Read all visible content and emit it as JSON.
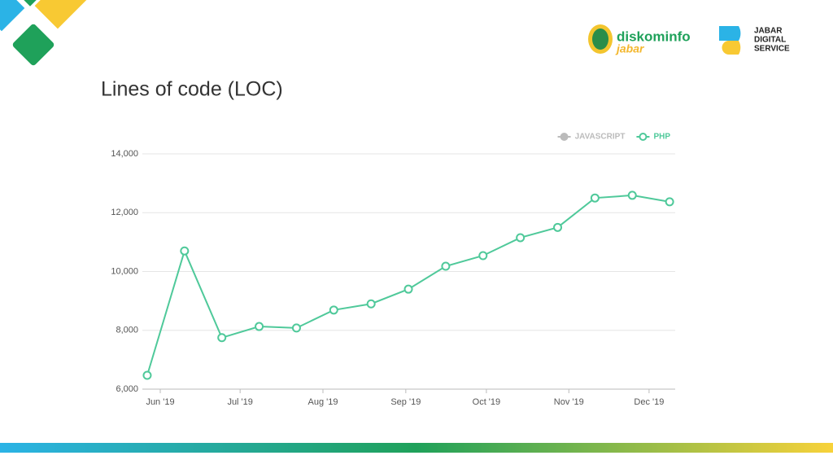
{
  "logos": {
    "diskominfo": "diskominfo",
    "jabar": "jabar",
    "jds": [
      "JABAR",
      "DIGITAL",
      "SERVICE"
    ]
  },
  "chart_data": {
    "type": "line",
    "title": "Lines of code (LOC)",
    "x": [
      0,
      1,
      2,
      3,
      4,
      5,
      6,
      7,
      8,
      9,
      10,
      11,
      12,
      13,
      14
    ],
    "series": [
      {
        "name": "JAVASCRIPT",
        "color": "#bbbbbb",
        "hidden": true,
        "values": [
          null,
          null,
          null,
          null,
          null,
          null,
          null,
          null,
          null,
          null,
          null,
          null,
          null,
          null,
          null
        ]
      },
      {
        "name": "PHP",
        "color": "#4fc99a",
        "values": [
          6470,
          10700,
          7750,
          8130,
          8080,
          8690,
          8900,
          9400,
          10180,
          10540,
          11150,
          11500,
          12500,
          12590,
          12370
        ]
      }
    ],
    "xlim": [
      -0.13,
      14.15
    ],
    "xticks": [
      {
        "value": 0.35,
        "label": "Jun '19"
      },
      {
        "value": 2.49,
        "label": "Jul '19"
      },
      {
        "value": 4.71,
        "label": "Aug '19"
      },
      {
        "value": 6.93,
        "label": "Sep '19"
      },
      {
        "value": 9.09,
        "label": "Oct '19"
      },
      {
        "value": 11.3,
        "label": "Nov '19"
      },
      {
        "value": 13.45,
        "label": "Dec '19"
      }
    ],
    "ylim": [
      6000,
      14000
    ],
    "yticks": [
      {
        "value": 6000,
        "label": "6,000"
      },
      {
        "value": 8000,
        "label": "8,000"
      },
      {
        "value": 10000,
        "label": "10,000"
      },
      {
        "value": 12000,
        "label": "12,000"
      },
      {
        "value": 14000,
        "label": "14,000"
      }
    ],
    "grid": true,
    "legend": "top-right"
  }
}
